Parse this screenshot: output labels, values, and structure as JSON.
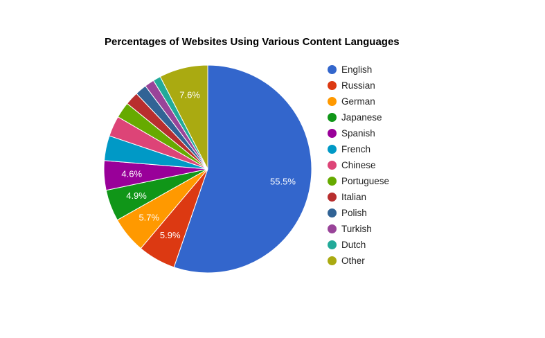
{
  "chart_data": {
    "type": "pie",
    "title": "Percentages of Websites Using Various Content Languages",
    "legend_position": "right",
    "slices": [
      {
        "name": "English",
        "value": 55.5,
        "label": "55.5%",
        "color": "#3366cc"
      },
      {
        "name": "Russian",
        "value": 5.9,
        "label": "5.9%",
        "color": "#dc3912"
      },
      {
        "name": "German",
        "value": 5.7,
        "label": "5.7%",
        "color": "#ff9900"
      },
      {
        "name": "Japanese",
        "value": 4.9,
        "label": "4.9%",
        "color": "#109618"
      },
      {
        "name": "Spanish",
        "value": 4.6,
        "label": "4.6%",
        "color": "#990099"
      },
      {
        "name": "French",
        "value": 3.9,
        "label": "",
        "color": "#0099c6"
      },
      {
        "name": "Chinese",
        "value": 3.2,
        "label": "",
        "color": "#dd4477"
      },
      {
        "name": "Portuguese",
        "value": 2.5,
        "label": "",
        "color": "#66aa00"
      },
      {
        "name": "Italian",
        "value": 2.1,
        "label": "",
        "color": "#b82e2e"
      },
      {
        "name": "Polish",
        "value": 1.8,
        "label": "",
        "color": "#316395"
      },
      {
        "name": "Turkish",
        "value": 1.5,
        "label": "",
        "color": "#994499"
      },
      {
        "name": "Dutch",
        "value": 1.2,
        "label": "",
        "color": "#22aa99"
      },
      {
        "name": "Other",
        "value": 7.6,
        "label": "7.6%",
        "color": "#aaaa11"
      }
    ]
  }
}
